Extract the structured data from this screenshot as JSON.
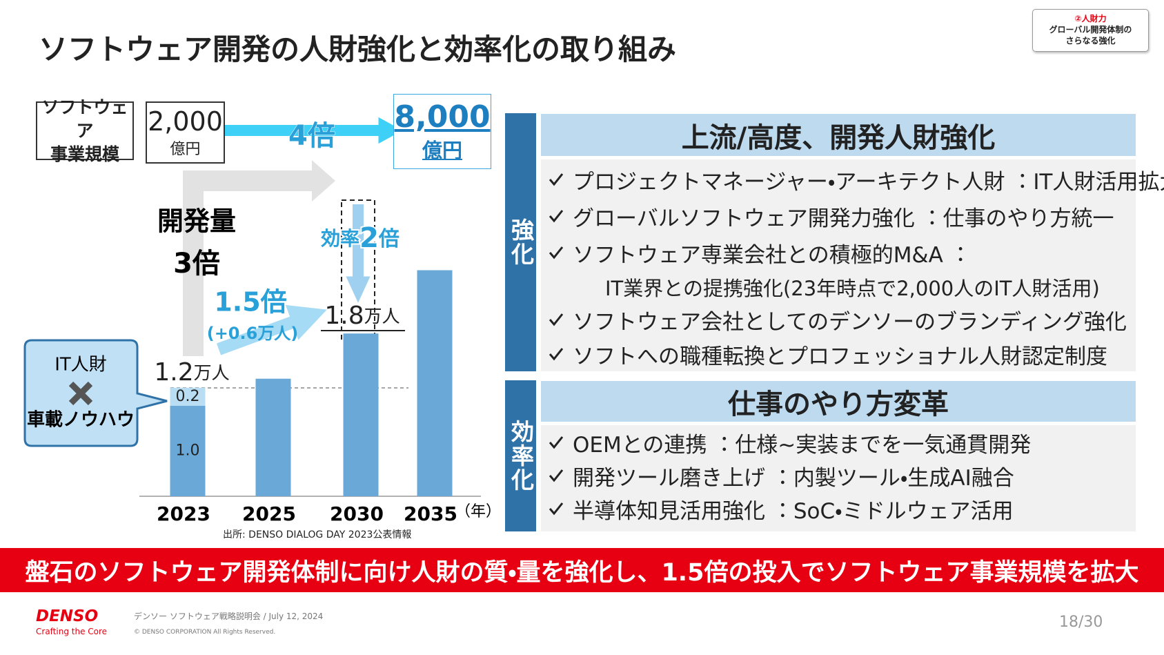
{
  "header": {
    "title": "ソフトウェア開発の人財強化と効率化の取り組み",
    "badge": {
      "title": "②人財力",
      "lines": [
        "グローバル開発体制の",
        "さらなる強化"
      ]
    }
  },
  "scale": {
    "label_lines": [
      "ソフトウェア",
      "事業規模"
    ],
    "from": {
      "value": "2,000",
      "unit": "億円"
    },
    "multiplier": "4倍",
    "to": {
      "value": "8,000",
      "unit": "億円"
    }
  },
  "chart_data": {
    "type": "bar",
    "categories": [
      "2023",
      "2025",
      "2030",
      "2035"
    ],
    "x_unit": "（年）",
    "series": [
      {
        "color": "#6aa8d8",
        "values": [
          1.0,
          1.3,
          1.8,
          2.5
        ],
        "value_labels": [
          "1.0",
          null,
          null,
          null
        ]
      },
      {
        "color": "#b9def4",
        "values": [
          0.2,
          null,
          null,
          null
        ],
        "value_labels": [
          "0.2",
          null,
          null,
          null
        ]
      }
    ],
    "annotations": {
      "development": {
        "label": "開発量",
        "multiplier": "3倍"
      },
      "growth": {
        "multiplier": "1.5倍",
        "delta": "(+0.6万人)"
      },
      "efficiency": {
        "prefix": "効率",
        "number": "2",
        "suffix": "倍"
      },
      "totals": [
        {
          "number": "1.2",
          "unit": "万人"
        },
        {
          "number": "1.8",
          "unit": "万人"
        }
      ],
      "callout": [
        "IT人財",
        "車載ノウハウ"
      ]
    },
    "source": "出所: DENSO DIALOG DAY 2023公表情報"
  },
  "panels": [
    {
      "side": "強化",
      "heading": "上流/高度、開発人財強化",
      "items": [
        {
          "text": "プロジェクトマネージャー・アーキテクト人財 ：IT人財活用拡大"
        },
        {
          "text": "グローバルソフトウェア開発力強化 ：仕事のやり方統一"
        },
        {
          "text": "ソフトウェア専業会社との積極的M&A ：",
          "sub": "IT業界との提携強化(23年時点で2,000人のIT人財活用)"
        },
        {
          "text": "ソフトウェア会社としてのデンソーのブランディング強化"
        },
        {
          "text": "ソフトへの職種転換とプロフェッショナル人財認定制度"
        }
      ]
    },
    {
      "side": "効率化",
      "heading": "仕事のやり方変革",
      "items": [
        {
          "text": "OEMとの連携 ：仕様~実装までを一気通貫開発"
        },
        {
          "text": "開発ツール磨き上げ ：内製ツール・生成AI融合"
        },
        {
          "text": "半導体知見活用強化 ：SoC・ミドルウェア活用"
        }
      ]
    }
  ],
  "banner": "盤石のソフトウェア開発体制に向け人財の質・量を強化し、1.5倍の投入でソフトウェア事業規模を拡大",
  "footer": {
    "logo": "DENSO",
    "tagline": "Crafting the Core",
    "event": "デンソー ソフトウェア戦略説明会 / July 12, 2024",
    "copyright": "© DENSO CORPORATION All Rights Reserved.",
    "page": "18/30"
  }
}
